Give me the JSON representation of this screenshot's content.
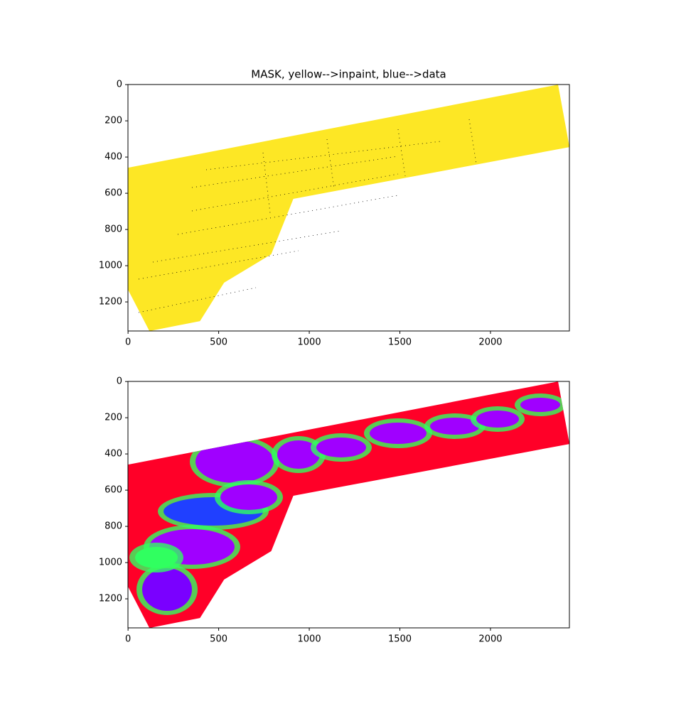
{
  "chart_data": [
    {
      "type": "image",
      "title": "MASK, yellow-->inpaint, blue-->data",
      "xlim": [
        -0.5,
        2435.5
      ],
      "ylim": [
        1360.5,
        -0.5
      ],
      "xticks": [
        0,
        500,
        1000,
        1500,
        2000
      ],
      "yticks": [
        0,
        200,
        400,
        600,
        800,
        1000,
        1200
      ],
      "polygon": {
        "x": [
          0,
          2373,
          2436,
          912,
          790,
          530,
          397,
          118,
          0
        ],
        "y": [
          459,
          0,
          345,
          631,
          937,
          1094,
          1306,
          1361,
          1133
        ]
      },
      "color": "#fde725"
    },
    {
      "type": "image",
      "xlim": [
        -0.5,
        2435.5
      ],
      "ylim": [
        1360.5,
        -0.5
      ],
      "xticks": [
        0,
        500,
        1000,
        1500,
        2000
      ],
      "yticks": [
        0,
        200,
        400,
        600,
        800,
        1000,
        1200
      ],
      "polygon": {
        "x": [
          0,
          2373,
          2436,
          912,
          790,
          530,
          397,
          118,
          0
        ],
        "y": [
          459,
          0,
          345,
          631,
          937,
          1094,
          1306,
          1361,
          1133
        ]
      },
      "color": "#ff0028"
    }
  ]
}
